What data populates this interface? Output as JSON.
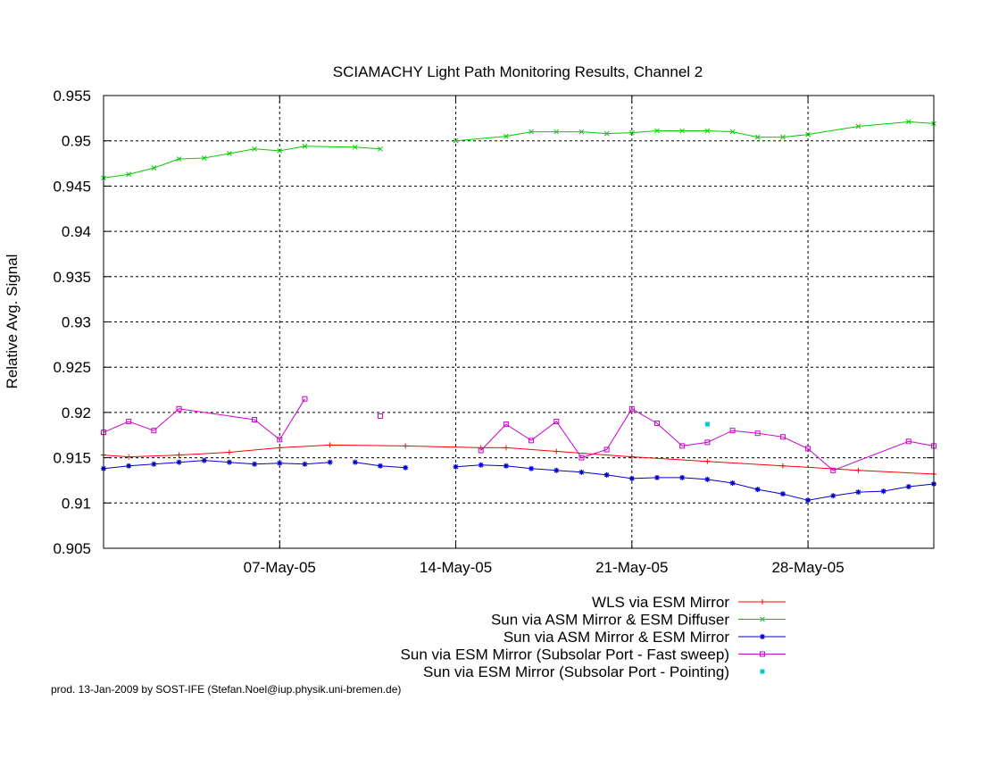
{
  "chart_data": {
    "type": "line",
    "title": "SCIAMACHY Light Path Monitoring Results, Channel 2",
    "xlabel": "",
    "ylabel": "Relative Avg. Signal",
    "x_axis": {
      "type": "date",
      "range": [
        "2005-04-30",
        "2005-06-02"
      ],
      "tick_labels": [
        {
          "date": "2005-05-07",
          "label": "07-May-05"
        },
        {
          "date": "2005-05-14",
          "label": "14-May-05"
        },
        {
          "date": "2005-05-21",
          "label": "21-May-05"
        },
        {
          "date": "2005-05-28",
          "label": "28-May-05"
        }
      ]
    },
    "y_axis": {
      "range": [
        0.905,
        0.955
      ],
      "tick_labels": [
        "0.905",
        "0.91",
        "0.915",
        "0.92",
        "0.925",
        "0.93",
        "0.935",
        "0.94",
        "0.945",
        "0.95",
        "0.955"
      ]
    },
    "grid": true,
    "legend_position": "bottom-right",
    "series": [
      {
        "name": "WLS via ESM Mirror",
        "color": "#ff0000",
        "marker": "plus",
        "segments": [
          [
            [
              "2005-04-30",
              0.9153
            ],
            [
              "2005-05-01",
              0.9151
            ],
            [
              "2005-05-03",
              0.9153
            ],
            [
              "2005-05-05",
              0.9156
            ],
            [
              "2005-05-07",
              0.9161
            ],
            [
              "2005-05-09",
              0.9164
            ],
            [
              "2005-05-12",
              0.9163
            ],
            [
              "2005-05-15",
              0.9161
            ],
            [
              "2005-05-16",
              0.9161
            ],
            [
              "2005-05-18",
              0.9157
            ],
            [
              "2005-05-21",
              0.9151
            ],
            [
              "2005-05-24",
              0.9146
            ],
            [
              "2005-05-27",
              0.9141
            ],
            [
              "2005-05-30",
              0.9136
            ],
            [
              "2005-06-02",
              0.9132
            ]
          ]
        ]
      },
      {
        "name": "Sun via ASM Mirror & ESM Diffuser",
        "color": "#00cc00",
        "marker": "cross",
        "segments": [
          [
            [
              "2005-04-30",
              0.9459
            ],
            [
              "2005-05-01",
              0.9463
            ],
            [
              "2005-05-02",
              0.947
            ],
            [
              "2005-05-03",
              0.948
            ],
            [
              "2005-05-04",
              0.9481
            ],
            [
              "2005-05-05",
              0.9486
            ],
            [
              "2005-05-06",
              0.9491
            ],
            [
              "2005-05-07",
              0.9489
            ],
            [
              "2005-05-08",
              0.9494
            ],
            [
              "2005-05-10",
              0.9493
            ],
            [
              "2005-05-11",
              0.9491
            ]
          ],
          [
            [
              "2005-05-14",
              0.95
            ],
            [
              "2005-05-16",
              0.9505
            ],
            [
              "2005-05-17",
              0.951
            ],
            [
              "2005-05-18",
              0.951
            ],
            [
              "2005-05-19",
              0.951
            ],
            [
              "2005-05-20",
              0.9508
            ],
            [
              "2005-05-21",
              0.9509
            ],
            [
              "2005-05-22",
              0.9511
            ],
            [
              "2005-05-23",
              0.9511
            ],
            [
              "2005-05-24",
              0.9511
            ],
            [
              "2005-05-25",
              0.951
            ],
            [
              "2005-05-26",
              0.9504
            ],
            [
              "2005-05-27",
              0.9504
            ],
            [
              "2005-05-28",
              0.9507
            ],
            [
              "2005-05-30",
              0.9516
            ],
            [
              "2005-06-01",
              0.9521
            ],
            [
              "2005-06-02",
              0.9519
            ]
          ]
        ]
      },
      {
        "name": "Sun via ASM Mirror & ESM Mirror",
        "color": "#0000cc",
        "marker": "star",
        "segments": [
          [
            [
              "2005-04-30",
              0.9138
            ],
            [
              "2005-05-01",
              0.9141
            ],
            [
              "2005-05-02",
              0.9143
            ],
            [
              "2005-05-03",
              0.9145
            ],
            [
              "2005-05-04",
              0.9147
            ],
            [
              "2005-05-05",
              0.9145
            ],
            [
              "2005-05-06",
              0.9143
            ],
            [
              "2005-05-07",
              0.9144
            ],
            [
              "2005-05-08",
              0.9143
            ],
            [
              "2005-05-09",
              0.9145
            ]
          ],
          [
            [
              "2005-05-10",
              0.9145
            ],
            [
              "2005-05-11",
              0.9141
            ],
            [
              "2005-05-12",
              0.9139
            ]
          ],
          [
            [
              "2005-05-14",
              0.914
            ],
            [
              "2005-05-15",
              0.9142
            ],
            [
              "2005-05-16",
              0.9141
            ],
            [
              "2005-05-17",
              0.9138
            ],
            [
              "2005-05-18",
              0.9136
            ],
            [
              "2005-05-19",
              0.9134
            ],
            [
              "2005-05-20",
              0.9131
            ],
            [
              "2005-05-21",
              0.9127
            ],
            [
              "2005-05-22",
              0.9128
            ],
            [
              "2005-05-23",
              0.9128
            ],
            [
              "2005-05-24",
              0.9126
            ],
            [
              "2005-05-25",
              0.9122
            ],
            [
              "2005-05-26",
              0.9115
            ],
            [
              "2005-05-27",
              0.911
            ],
            [
              "2005-05-28",
              0.9103
            ],
            [
              "2005-05-29",
              0.9108
            ],
            [
              "2005-05-30",
              0.9112
            ],
            [
              "2005-05-31",
              0.9113
            ],
            [
              "2005-06-01",
              0.9118
            ],
            [
              "2005-06-02",
              0.9121
            ]
          ]
        ]
      },
      {
        "name": "Sun via ESM Mirror (Subsolar Port - Fast sweep)",
        "color": "#cc00cc",
        "marker": "square",
        "segments": [
          [
            [
              "2005-04-30",
              0.9178
            ],
            [
              "2005-05-01",
              0.919
            ],
            [
              "2005-05-02",
              0.918
            ],
            [
              "2005-05-03",
              0.9204
            ],
            [
              "2005-05-06",
              0.9192
            ],
            [
              "2005-05-07",
              0.917
            ],
            [
              "2005-05-08",
              0.9215
            ]
          ],
          [
            [
              "2005-05-15",
              0.9158
            ],
            [
              "2005-05-16",
              0.9187
            ],
            [
              "2005-05-17",
              0.9169
            ],
            [
              "2005-05-18",
              0.919
            ],
            [
              "2005-05-19",
              0.915
            ],
            [
              "2005-05-20",
              0.9159
            ],
            [
              "2005-05-21",
              0.9204
            ],
            [
              "2005-05-22",
              0.9188
            ],
            [
              "2005-05-23",
              0.9163
            ],
            [
              "2005-05-24",
              0.9167
            ],
            [
              "2005-05-25",
              0.918
            ],
            [
              "2005-05-26",
              0.9177
            ],
            [
              "2005-05-27",
              0.9173
            ],
            [
              "2005-05-28",
              0.916
            ],
            [
              "2005-05-29",
              0.9136
            ],
            [
              "2005-06-01",
              0.9168
            ],
            [
              "2005-06-02",
              0.9163
            ]
          ],
          [
            [
              "2005-05-11",
              0.9196
            ]
          ]
        ]
      },
      {
        "name": "Sun via ESM Mirror (Subsolar Port - Pointing)",
        "color": "#00cccc",
        "marker": "dot",
        "segments": [
          [
            [
              "2005-05-24",
              0.9187
            ]
          ]
        ]
      }
    ]
  },
  "footer": {
    "credit": "prod. 13-Jan-2009 by SOST-IFE (Stefan.Noel@iup.physik.uni-bremen.de)"
  }
}
